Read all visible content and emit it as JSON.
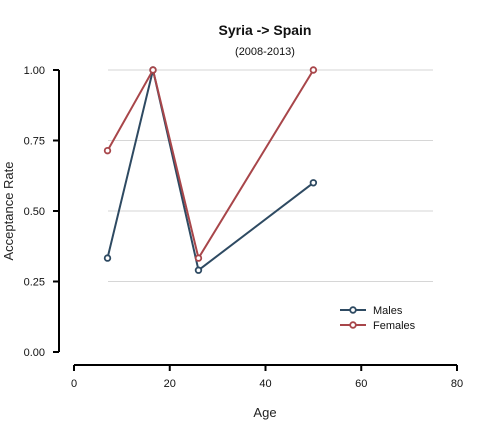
{
  "chart_data": {
    "type": "line",
    "title": "Syria  ->  Spain",
    "subtitle": "(2008-2013)",
    "xlabel": "Age",
    "ylabel": "Acceptance Rate",
    "xlim": [
      0,
      80
    ],
    "ylim": [
      0,
      1
    ],
    "x_ticks": [
      0,
      20,
      40,
      60,
      80
    ],
    "y_ticks": [
      0,
      0.25,
      0.5,
      0.75,
      1.0
    ],
    "x_tick_labels": [
      "0",
      "20",
      "40",
      "60",
      "80"
    ],
    "y_tick_labels": [
      "0.00",
      "0.25",
      "0.50",
      "0.75",
      "1.00"
    ],
    "grid": "horizontal",
    "legend_position": "bottom-right",
    "series": [
      {
        "name": "Males",
        "color": "#2e4a62",
        "segments": [
          [
            {
              "x": 7,
              "y": 0.333
            },
            {
              "x": 16.5,
              "y": 1.0
            },
            {
              "x": 26,
              "y": 0.29
            }
          ],
          [
            {
              "x": 26,
              "y": 0.29
            },
            {
              "x": 50,
              "y": 0.6
            }
          ]
        ]
      },
      {
        "name": "Females",
        "color": "#a8464a",
        "segments": [
          [
            {
              "x": 7,
              "y": 0.714
            },
            {
              "x": 16.5,
              "y": 1.0
            },
            {
              "x": 26,
              "y": 0.333
            },
            {
              "x": 50,
              "y": 1.0
            }
          ]
        ]
      }
    ]
  }
}
